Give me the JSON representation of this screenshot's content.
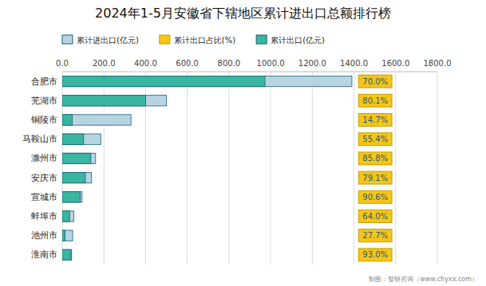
{
  "chart_data": {
    "type": "bar",
    "orientation": "horizontal",
    "title": "2024年1-5月安徽省下辖地区累计进出口总额排行榜",
    "categories": [
      "合肥市",
      "芜湖市",
      "铜陵市",
      "马鞍山市",
      "滁州市",
      "安庆市",
      "宣城市",
      "蚌埠市",
      "池州市",
      "淮南市"
    ],
    "series": [
      {
        "name": "累计进出口(亿元)",
        "color": "#b8d4e3",
        "values": [
          1390,
          500,
          330,
          185,
          160,
          140,
          95,
          55,
          50,
          45
        ]
      },
      {
        "name": "累计出口占比(%)",
        "color": "#f5c518",
        "type": "label",
        "values": [
          70.0,
          80.1,
          14.7,
          55.4,
          85.8,
          79.1,
          90.6,
          64.0,
          27.7,
          93.0
        ],
        "value_labels": [
          "70.0%",
          "80.1%",
          "14.7%",
          "55.4%",
          "85.8%",
          "79.1%",
          "90.6%",
          "64.0%",
          "27.7%",
          "93.0%"
        ]
      },
      {
        "name": "累计出口(亿元)",
        "color": "#3ab5a0",
        "values": [
          973,
          400.5,
          48.5,
          102.5,
          137.3,
          110.7,
          86.1,
          35.2,
          13.9,
          41.9
        ]
      }
    ],
    "xlim": [
      0,
      1800
    ],
    "xticks": [
      {
        "value": 0,
        "label": "0.0"
      },
      {
        "value": 200,
        "label": "200.0"
      },
      {
        "value": 400,
        "label": "400.0"
      },
      {
        "value": 600,
        "label": "600.0"
      },
      {
        "value": 800,
        "label": "800.0"
      },
      {
        "value": 1000,
        "label": "1000.0"
      },
      {
        "value": 1200,
        "label": "1200.0"
      },
      {
        "value": 1400,
        "label": "1400.0"
      },
      {
        "value": 1600,
        "label": "1600.0"
      },
      {
        "value": 1800,
        "label": "1800.0"
      }
    ],
    "grid": true,
    "legend": "top",
    "data_labels": true,
    "annotations": [
      "制图：智研咨询（www.chyxx.com）"
    ]
  }
}
